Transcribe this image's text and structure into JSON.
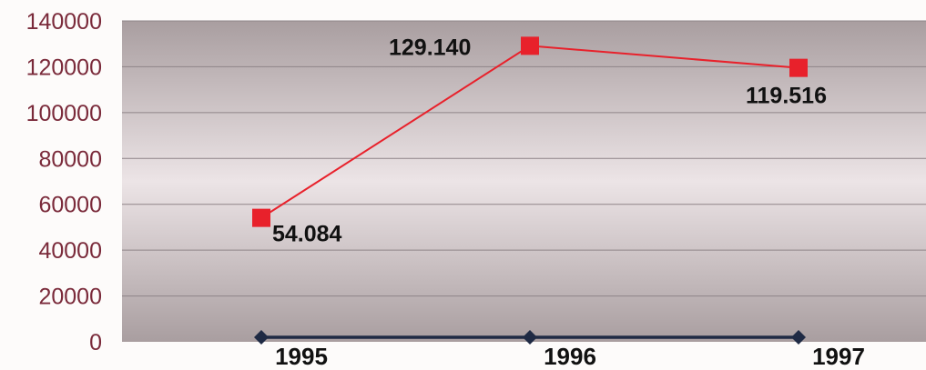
{
  "chart_data": {
    "type": "line",
    "categories": [
      "1995",
      "1996",
      "1997"
    ],
    "series": [
      {
        "values": [
          54084,
          129140,
          119516
        ],
        "data_labels": [
          "54.084",
          "129.140",
          "119.516"
        ],
        "color": "#e8212b",
        "marker": "square"
      },
      {
        "values": [
          0,
          0,
          0
        ],
        "color": "#1f2a44",
        "marker": "diamond"
      }
    ],
    "y_ticks": [
      "0",
      "20000",
      "40000",
      "60000",
      "80000",
      "100000",
      "120000",
      "140000"
    ],
    "ylim": [
      0,
      140000
    ],
    "grid": true,
    "title": "",
    "xlabel": "",
    "ylabel": ""
  },
  "colors": {
    "plot_dark": "#a99ea0",
    "plot_light": "#ece4e6",
    "gridline": "#8f8589",
    "tick_label": "#7a2a3a"
  }
}
